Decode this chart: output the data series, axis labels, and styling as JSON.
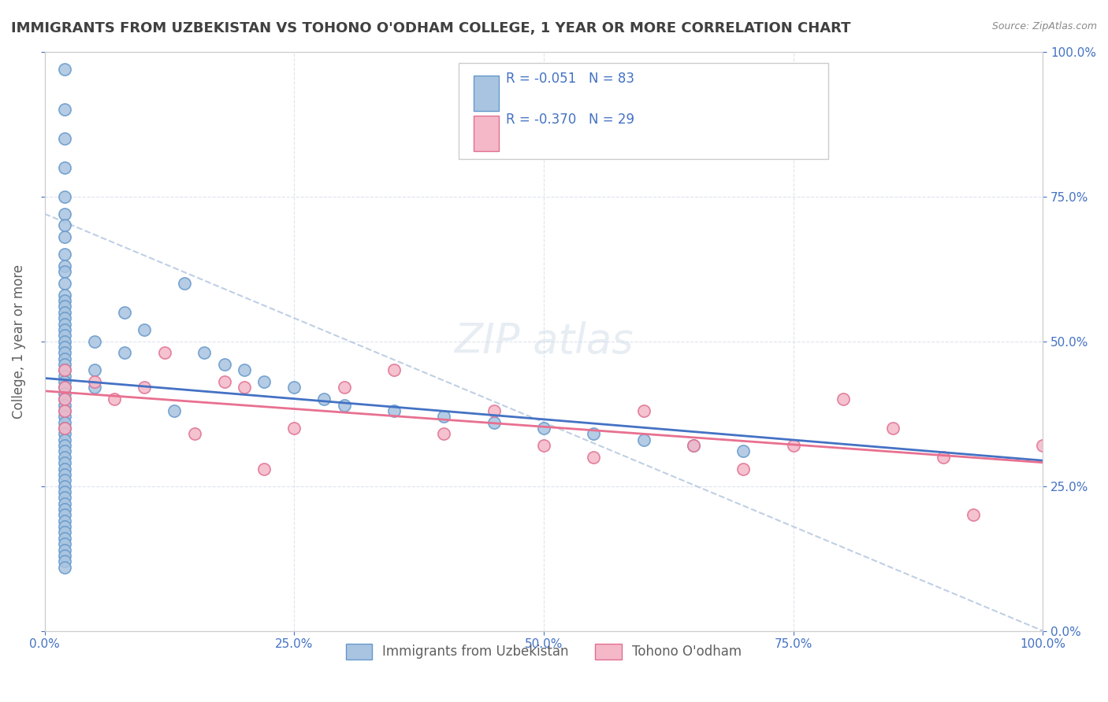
{
  "title": "IMMIGRANTS FROM UZBEKISTAN VS TOHONO O'ODHAM COLLEGE, 1 YEAR OR MORE CORRELATION CHART",
  "source_text": "Source: ZipAtlas.com",
  "xlabel": "",
  "ylabel": "College, 1 year or more",
  "xlim": [
    0.0,
    1.0
  ],
  "ylim": [
    0.0,
    1.0
  ],
  "xticks": [
    0.0,
    0.25,
    0.5,
    0.75,
    1.0
  ],
  "xticklabels": [
    "0.0%",
    "25.0%",
    "50.0%",
    "75.0%",
    "100.0%"
  ],
  "yticks_right": [
    0.0,
    0.25,
    0.5,
    0.75,
    1.0
  ],
  "yticklabels_right": [
    "0.0%",
    "25.0%",
    "50.0%",
    "75.0%",
    "100.0%"
  ],
  "legend_R1": "-0.051",
  "legend_N1": "83",
  "legend_R2": "-0.370",
  "legend_N2": "29",
  "series1_label": "Immigrants from Uzbekistan",
  "series2_label": "Tohono O'odham",
  "series1_color": "#a8c4e0",
  "series2_color": "#f4b8c8",
  "series1_edge_color": "#6699cc",
  "series2_edge_color": "#e07090",
  "trend1_color": "#4472c4",
  "trend2_color": "#e87090",
  "dash_color": "#b0c4de",
  "background_color": "#ffffff",
  "title_color": "#404040",
  "axis_label_color": "#606060",
  "tick_color": "#4472c4",
  "blue_x": [
    0.02,
    0.02,
    0.02,
    0.02,
    0.02,
    0.02,
    0.02,
    0.02,
    0.02,
    0.02,
    0.02,
    0.02,
    0.02,
    0.02,
    0.02,
    0.02,
    0.02,
    0.02,
    0.02,
    0.02,
    0.02,
    0.02,
    0.02,
    0.02,
    0.02,
    0.02,
    0.02,
    0.02,
    0.02,
    0.02,
    0.02,
    0.02,
    0.02,
    0.02,
    0.02,
    0.02,
    0.02,
    0.02,
    0.02,
    0.02,
    0.02,
    0.02,
    0.02,
    0.02,
    0.02,
    0.02,
    0.02,
    0.02,
    0.02,
    0.02,
    0.02,
    0.02,
    0.02,
    0.02,
    0.02,
    0.02,
    0.02,
    0.02,
    0.02,
    0.02,
    0.05,
    0.05,
    0.05,
    0.08,
    0.08,
    0.1,
    0.13,
    0.14,
    0.16,
    0.18,
    0.2,
    0.22,
    0.25,
    0.28,
    0.3,
    0.35,
    0.4,
    0.45,
    0.5,
    0.55,
    0.6,
    0.65,
    0.7
  ],
  "blue_y": [
    0.97,
    0.9,
    0.85,
    0.8,
    0.75,
    0.72,
    0.7,
    0.68,
    0.65,
    0.63,
    0.62,
    0.6,
    0.58,
    0.57,
    0.56,
    0.55,
    0.54,
    0.53,
    0.52,
    0.51,
    0.5,
    0.49,
    0.48,
    0.47,
    0.46,
    0.45,
    0.44,
    0.43,
    0.42,
    0.41,
    0.4,
    0.39,
    0.38,
    0.37,
    0.36,
    0.35,
    0.34,
    0.33,
    0.32,
    0.31,
    0.3,
    0.29,
    0.28,
    0.27,
    0.26,
    0.25,
    0.24,
    0.23,
    0.22,
    0.21,
    0.2,
    0.19,
    0.18,
    0.17,
    0.16,
    0.15,
    0.14,
    0.13,
    0.12,
    0.11,
    0.5,
    0.45,
    0.42,
    0.55,
    0.48,
    0.52,
    0.38,
    0.6,
    0.48,
    0.46,
    0.45,
    0.43,
    0.42,
    0.4,
    0.39,
    0.38,
    0.37,
    0.36,
    0.35,
    0.34,
    0.33,
    0.32,
    0.31
  ],
  "pink_x": [
    0.02,
    0.02,
    0.02,
    0.02,
    0.02,
    0.05,
    0.07,
    0.1,
    0.12,
    0.15,
    0.18,
    0.2,
    0.22,
    0.25,
    0.3,
    0.35,
    0.4,
    0.45,
    0.5,
    0.55,
    0.6,
    0.65,
    0.7,
    0.75,
    0.8,
    0.85,
    0.9,
    0.93,
    1.0
  ],
  "pink_y": [
    0.45,
    0.42,
    0.4,
    0.38,
    0.35,
    0.43,
    0.4,
    0.42,
    0.48,
    0.34,
    0.43,
    0.42,
    0.28,
    0.35,
    0.42,
    0.45,
    0.34,
    0.38,
    0.32,
    0.3,
    0.38,
    0.32,
    0.28,
    0.32,
    0.4,
    0.35,
    0.3,
    0.2,
    0.32
  ]
}
